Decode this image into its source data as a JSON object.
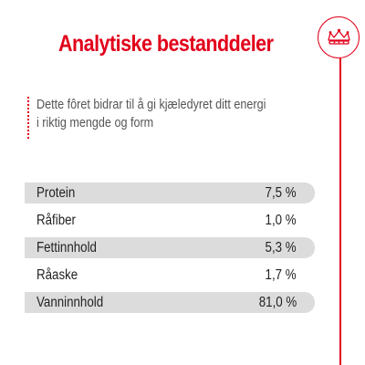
{
  "header": {
    "title": "Analytiske bestanddeler"
  },
  "brand": {
    "icon": "crown-icon",
    "accent_color": "#e2001a"
  },
  "intro": {
    "line1": "Dette fôret bidrar til å gi kjæledyret ditt energi",
    "line2": "i riktig mengde og form"
  },
  "table": {
    "rows": [
      {
        "label": "Protein",
        "value": "7,5 %"
      },
      {
        "label": "Råfiber",
        "value": "1,0 %"
      },
      {
        "label": "Fettinnhold",
        "value": "5,3 %"
      },
      {
        "label": "Råaske",
        "value": "1,7 %"
      },
      {
        "label": "Vanninnhold",
        "value": "81,0 %"
      }
    ]
  }
}
